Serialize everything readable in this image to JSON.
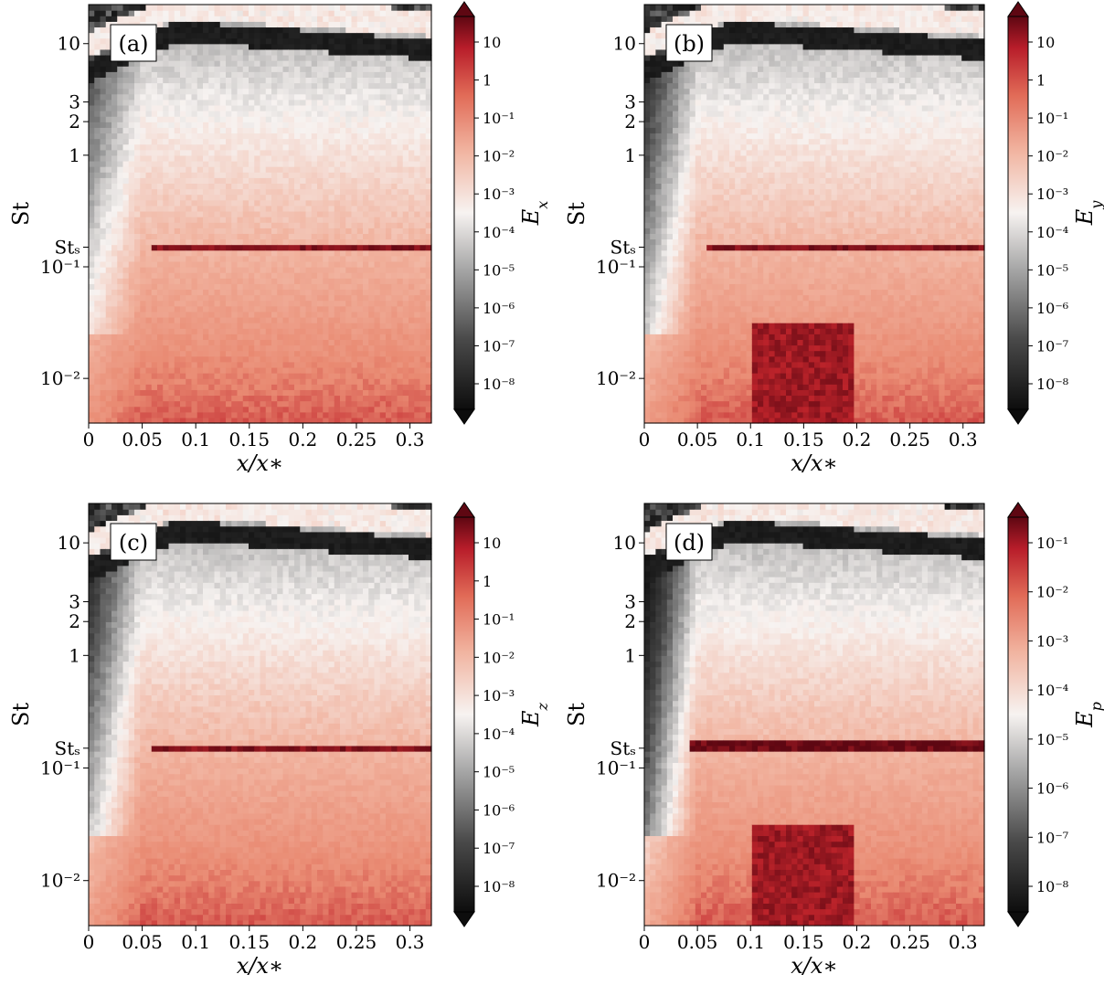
{
  "figure": {
    "type": "spectrogram-grid",
    "panels_count": 4
  },
  "colors": {
    "low": "#0d0d0d",
    "mid_low": "#9a9a9a",
    "neutral": "#f7f3f1",
    "mid_high": "#e98a72",
    "high": "#c2252c",
    "peak": "#5e0712"
  },
  "chart_data": [
    {
      "type": "heatmap",
      "panel_label": "(a)",
      "xlabel": "x/x∗",
      "ylabel": "St",
      "colorbar_label": "E",
      "colorbar_sub": "x",
      "x_ticks": [
        "0",
        "0.05",
        "0.1",
        "0.15",
        "0.2",
        "0.25",
        "0.3"
      ],
      "y_ticks": [
        "10⁻²",
        "10⁻¹",
        "Stₛ",
        "1",
        "2",
        "3",
        "10"
      ],
      "cb_ticks": [
        "10",
        "1",
        "10⁻¹",
        "10⁻²",
        "10⁻³",
        "10⁻⁴",
        "10⁻⁵",
        "10⁻⁶",
        "10⁻⁷",
        "10⁻⁸"
      ],
      "xlim": [
        0,
        0.32
      ],
      "ylim_log10": [
        -2.4,
        1.35
      ],
      "cb_range_log10": [
        -8,
        1
      ],
      "St_s": 0.15
    },
    {
      "type": "heatmap",
      "panel_label": "(b)",
      "xlabel": "x/x∗",
      "ylabel": "St",
      "colorbar_label": "E",
      "colorbar_sub": "y",
      "x_ticks": [
        "0",
        "0.05",
        "0.1",
        "0.15",
        "0.2",
        "0.25",
        "0.3"
      ],
      "y_ticks": [
        "10⁻²",
        "10⁻¹",
        "Stₛ",
        "1",
        "2",
        "3",
        "10"
      ],
      "cb_ticks": [
        "10",
        "1",
        "10⁻¹",
        "10⁻²",
        "10⁻³",
        "10⁻⁴",
        "10⁻⁵",
        "10⁻⁶",
        "10⁻⁷",
        "10⁻⁸"
      ],
      "xlim": [
        0,
        0.32
      ],
      "ylim_log10": [
        -2.4,
        1.35
      ],
      "cb_range_log10": [
        -8,
        1
      ],
      "St_s": 0.15
    },
    {
      "type": "heatmap",
      "panel_label": "(c)",
      "xlabel": "x/x∗",
      "ylabel": "St",
      "colorbar_label": "E",
      "colorbar_sub": "z",
      "x_ticks": [
        "0",
        "0.05",
        "0.1",
        "0.15",
        "0.2",
        "0.25",
        "0.3"
      ],
      "y_ticks": [
        "10⁻²",
        "10⁻¹",
        "Stₛ",
        "1",
        "2",
        "3",
        "10"
      ],
      "cb_ticks": [
        "10",
        "1",
        "10⁻¹",
        "10⁻²",
        "10⁻³",
        "10⁻⁴",
        "10⁻⁵",
        "10⁻⁶",
        "10⁻⁷",
        "10⁻⁸"
      ],
      "xlim": [
        0,
        0.32
      ],
      "ylim_log10": [
        -2.4,
        1.35
      ],
      "cb_range_log10": [
        -8,
        1
      ],
      "St_s": 0.15
    },
    {
      "type": "heatmap",
      "panel_label": "(d)",
      "xlabel": "x/x∗",
      "ylabel": "St",
      "colorbar_label": "E",
      "colorbar_sub": "p",
      "x_ticks": [
        "0",
        "0.05",
        "0.1",
        "0.15",
        "0.2",
        "0.25",
        "0.3"
      ],
      "y_ticks": [
        "10⁻²",
        "10⁻¹",
        "Stₛ",
        "1",
        "2",
        "3",
        "10"
      ],
      "cb_ticks": [
        "10⁻¹",
        "10⁻²",
        "10⁻³",
        "10⁻⁴",
        "10⁻⁵",
        "10⁻⁶",
        "10⁻⁷",
        "10⁻⁸"
      ],
      "xlim": [
        0,
        0.32
      ],
      "ylim_log10": [
        -2.4,
        1.35
      ],
      "cb_range_log10": [
        -8,
        -1
      ],
      "St_s": 0.15
    }
  ]
}
